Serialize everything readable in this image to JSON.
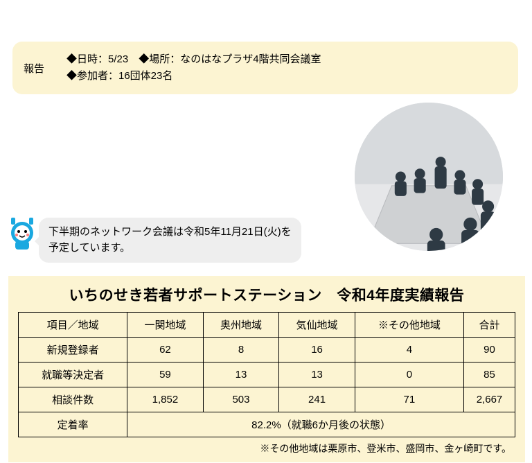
{
  "report": {
    "label": "報告",
    "line1": "◆日時：5/23　◆場所：なのはなプラザ4階共同会議室",
    "line2": "◆参加者：16団体23名"
  },
  "photo": {
    "bg": "#d7dadd",
    "floor": "#e6e7e9",
    "table": "#cfd1d3",
    "person": "#2e3a44"
  },
  "mascot": {
    "main": "#1aa8e0",
    "face": "#ffffff",
    "cheek": "#ff7f7f"
  },
  "speech": {
    "line1": "下半期のネットワーク会議は令和5年11月21日(火)を",
    "line2": "予定しています。"
  },
  "results": {
    "title": "いちのせき若者サポートステーション　令和4年度実績報告",
    "headers": [
      "項目／地域",
      "一関地域",
      "奥州地域",
      "気仙地域",
      "※その他地域",
      "合計"
    ],
    "rows": [
      {
        "label": "新規登録者",
        "values": [
          "62",
          "8",
          "16",
          "4",
          "90"
        ]
      },
      {
        "label": "就職等決定者",
        "values": [
          "59",
          "13",
          "13",
          "0",
          "85"
        ]
      },
      {
        "label": "相談件数",
        "values": [
          "1,852",
          "503",
          "241",
          "71",
          "2,667"
        ]
      }
    ],
    "retention_label": "定着率",
    "retention_value": "82.2%（就職6か月後の状態）",
    "footnote": "※その他地域は栗原市、登米市、盛岡市、金ヶ崎町です。"
  }
}
